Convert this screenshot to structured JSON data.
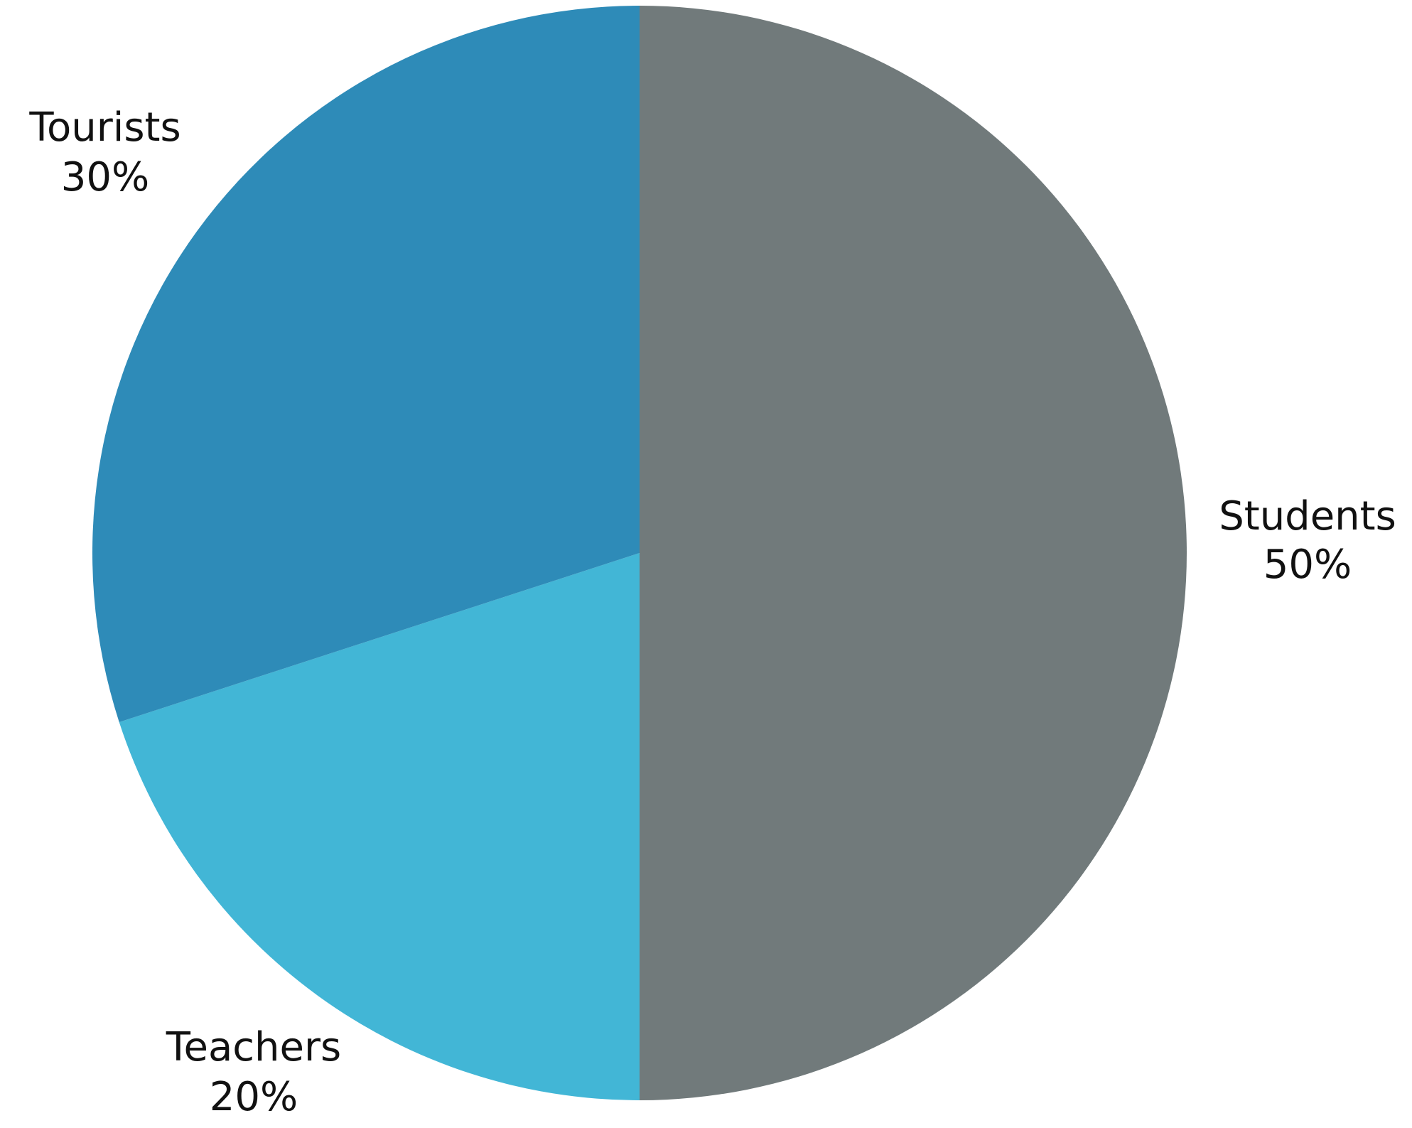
{
  "chart_data": {
    "type": "pie",
    "slices": [
      {
        "name": "Students",
        "value": 50,
        "label": "50%",
        "color": "#717a7b"
      },
      {
        "name": "Teachers",
        "value": 20,
        "label": "20%",
        "color": "#42b6d6"
      },
      {
        "name": "Tourists",
        "value": 30,
        "label": "30%",
        "color": "#2e8bb8"
      }
    ],
    "start_angle": "12 o'clock",
    "direction": "clockwise",
    "legend": "none",
    "labels": "outside"
  }
}
